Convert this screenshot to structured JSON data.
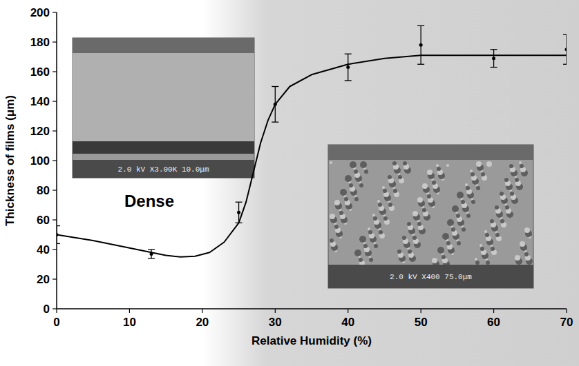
{
  "chart_data": {
    "type": "scatter",
    "x_label": "Relative Humidity (%)",
    "y_label": "Thickness of films (μm)",
    "annotations": [
      "Dense",
      "2.0 kV X3.00K 10.0μm",
      "2.0 kV X400 75.0μm"
    ],
    "xlim": [
      0,
      70
    ],
    "xticks": [
      0,
      10,
      20,
      30,
      40,
      50,
      60,
      70
    ],
    "ylim": [
      0,
      200
    ],
    "yticks": [
      0,
      20,
      40,
      60,
      80,
      100,
      120,
      140,
      160,
      180,
      200
    ],
    "grid": false,
    "series": [
      {
        "type": "scatter",
        "color": "#000000",
        "marker": "circle",
        "x": [
          0,
          13,
          25,
          30,
          40,
          50,
          60,
          70
        ],
        "values": [
          50,
          37,
          65,
          138,
          163,
          178,
          169,
          175
        ],
        "errors": [
          6,
          3,
          7,
          12,
          9,
          13,
          6,
          10
        ]
      },
      {
        "type": "line",
        "color": "#000000",
        "line_style": "solid",
        "x": [
          0,
          5,
          10,
          13,
          15,
          17,
          19,
          21,
          23,
          25,
          26,
          27,
          28,
          29,
          30,
          32,
          35,
          40,
          45,
          50,
          55,
          60,
          65,
          70
        ],
        "values": [
          50,
          46,
          41,
          38,
          36,
          35,
          35.5,
          38,
          45,
          58,
          72,
          92,
          112,
          127,
          138,
          150,
          158,
          165,
          169,
          171,
          171,
          171,
          171,
          171
        ]
      }
    ]
  }
}
